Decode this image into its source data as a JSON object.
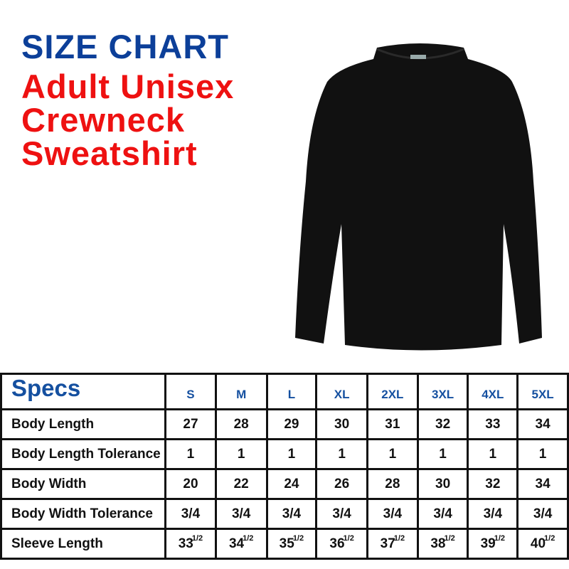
{
  "title": {
    "line1": "SIZE CHART",
    "line2": "Adult Unisex",
    "line3": "Crewneck",
    "line4": "Sweatshirt"
  },
  "colors": {
    "title_blue": "#0c3f99",
    "title_red": "#ee1111",
    "header_blue": "#1550a0",
    "garment": "#111111"
  },
  "table": {
    "corner": "Specs",
    "sizes": [
      "S",
      "M",
      "L",
      "XL",
      "2XL",
      "3XL",
      "4XL",
      "5XL"
    ],
    "rows": [
      {
        "label": "Body Length",
        "values": [
          "27",
          "28",
          "29",
          "30",
          "31",
          "32",
          "33",
          "34"
        ]
      },
      {
        "label": "Body Length Tolerance",
        "values": [
          "1",
          "1",
          "1",
          "1",
          "1",
          "1",
          "1",
          "1"
        ]
      },
      {
        "label": "Body Width",
        "values": [
          "20",
          "22",
          "24",
          "26",
          "28",
          "30",
          "32",
          "34"
        ]
      },
      {
        "label": "Body Width Tolerance",
        "values": [
          "3/4",
          "3/4",
          "3/4",
          "3/4",
          "3/4",
          "3/4",
          "3/4",
          "3/4"
        ]
      },
      {
        "label": "Sleeve Length",
        "values": [
          "33",
          "34",
          "35",
          "36",
          "37",
          "38",
          "39",
          "40"
        ],
        "fraction": "1/2"
      }
    ]
  }
}
